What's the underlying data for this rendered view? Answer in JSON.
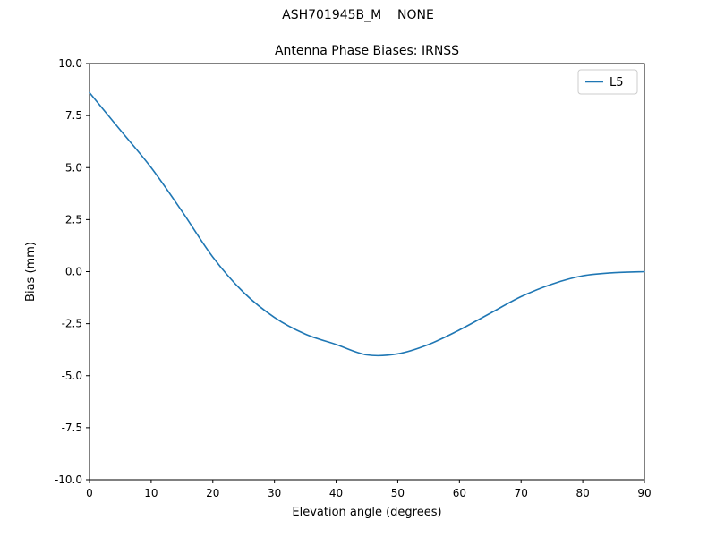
{
  "figure": {
    "suptitle": "ASH701945B_M    NONE"
  },
  "chart_data": {
    "type": "line",
    "title": "Antenna Phase Biases: IRNSS",
    "xlabel": "Elevation angle (degrees)",
    "ylabel": "Bias (mm)",
    "xlim": [
      0,
      90
    ],
    "ylim": [
      -10.0,
      10.0
    ],
    "xticks": [
      0,
      10,
      20,
      30,
      40,
      50,
      60,
      70,
      80,
      90
    ],
    "yticks": [
      -10.0,
      -7.5,
      -5.0,
      -2.5,
      0.0,
      2.5,
      5.0,
      7.5,
      10.0
    ],
    "grid": false,
    "legend_position": "upper right",
    "x": [
      0,
      5,
      10,
      15,
      20,
      25,
      30,
      35,
      40,
      45,
      50,
      55,
      60,
      65,
      70,
      75,
      80,
      85,
      90
    ],
    "series": [
      {
        "name": "L5",
        "color": "#1f77b4",
        "values": [
          8.6,
          6.8,
          5.0,
          2.9,
          0.7,
          -1.0,
          -2.2,
          -3.0,
          -3.5,
          -4.0,
          -3.95,
          -3.5,
          -2.8,
          -2.0,
          -1.2,
          -0.6,
          -0.2,
          -0.05,
          0.0
        ]
      }
    ]
  }
}
